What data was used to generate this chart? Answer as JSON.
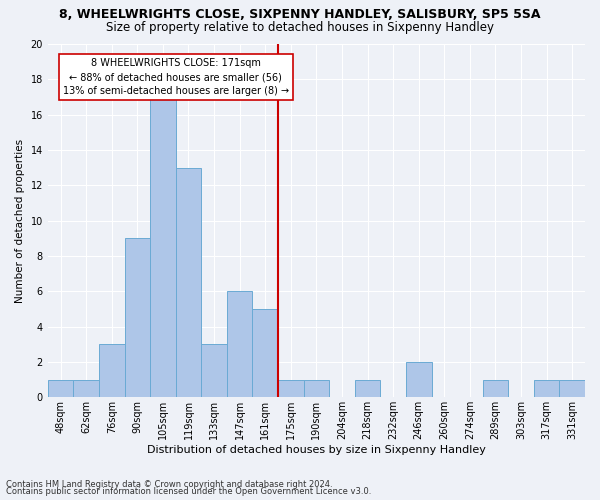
{
  "title": "8, WHEELWRIGHTS CLOSE, SIXPENNY HANDLEY, SALISBURY, SP5 5SA",
  "subtitle": "Size of property relative to detached houses in Sixpenny Handley",
  "xlabel": "Distribution of detached houses by size in Sixpenny Handley",
  "ylabel": "Number of detached properties",
  "categories": [
    "48sqm",
    "62sqm",
    "76sqm",
    "90sqm",
    "105sqm",
    "119sqm",
    "133sqm",
    "147sqm",
    "161sqm",
    "175sqm",
    "190sqm",
    "204sqm",
    "218sqm",
    "232sqm",
    "246sqm",
    "260sqm",
    "274sqm",
    "289sqm",
    "303sqm",
    "317sqm",
    "331sqm"
  ],
  "values": [
    1,
    1,
    3,
    9,
    17,
    13,
    3,
    6,
    5,
    1,
    1,
    0,
    1,
    0,
    2,
    0,
    0,
    1,
    0,
    1,
    1
  ],
  "bar_color": "#aec6e8",
  "bar_edge_color": "#6aaad4",
  "vline_index": 8,
  "vline_color": "#cc0000",
  "annotation_line1": "8 WHEELWRIGHTS CLOSE: 171sqm",
  "annotation_line2": "← 88% of detached houses are smaller (56)",
  "annotation_line3": "13% of semi-detached houses are larger (8) →",
  "annotation_box_color": "#cc0000",
  "ylim": [
    0,
    20
  ],
  "yticks": [
    0,
    2,
    4,
    6,
    8,
    10,
    12,
    14,
    16,
    18,
    20
  ],
  "footnote1": "Contains HM Land Registry data © Crown copyright and database right 2024.",
  "footnote2": "Contains public sector information licensed under the Open Government Licence v3.0.",
  "bg_color": "#eef1f7",
  "grid_color": "#ffffff",
  "title_fontsize": 9,
  "subtitle_fontsize": 8.5,
  "xlabel_fontsize": 8,
  "ylabel_fontsize": 7.5,
  "tick_fontsize": 7,
  "footnote_fontsize": 6
}
